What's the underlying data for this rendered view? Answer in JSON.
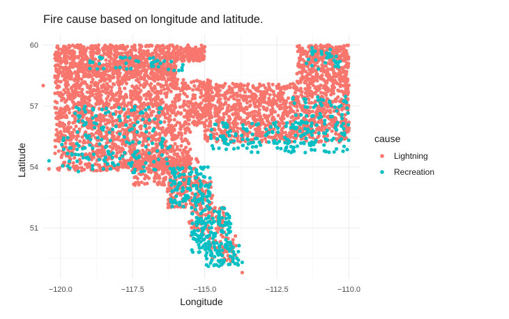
{
  "chart_data": {
    "type": "scatter",
    "title": "Fire cause based on longitude and latitude.",
    "xlabel": "Longitude",
    "ylabel": "Latitude",
    "xlim": [
      -120.6,
      -109.6
    ],
    "ylim": [
      48.5,
      60.5
    ],
    "x_ticks": [
      -120.0,
      -117.5,
      -115.0,
      -112.5,
      -110.0
    ],
    "x_tick_labels": [
      "−120.0",
      "−117.5",
      "−115.0",
      "−112.5",
      "−110.0"
    ],
    "y_ticks": [
      51,
      54,
      57,
      60
    ],
    "y_tick_labels": [
      "51",
      "54",
      "57",
      "60"
    ],
    "grid": true,
    "legend": {
      "title": "cause",
      "placement": "right"
    },
    "series": [
      {
        "name": "Lightning",
        "color": "#F8766D",
        "regions": [
          {
            "lon": [
              -120.2,
              -116.0
            ],
            "lat": [
              58.3,
              60.0
            ],
            "n": 900
          },
          {
            "lon": [
              -116.0,
              -115.0
            ],
            "lat": [
              59.2,
              60.0
            ],
            "n": 120
          },
          {
            "lon": [
              -120.2,
              -114.8
            ],
            "lat": [
              56.0,
              58.3
            ],
            "n": 900
          },
          {
            "lon": [
              -115.0,
              -110.0
            ],
            "lat": [
              55.2,
              58.1
            ],
            "n": 1100
          },
          {
            "lon": [
              -111.8,
              -110.0
            ],
            "lat": [
              58.1,
              60.0
            ],
            "n": 350
          },
          {
            "lon": [
              -120.2,
              -115.5
            ],
            "lat": [
              53.8,
              56.0
            ],
            "n": 700
          },
          {
            "lon": [
              -117.5,
              -115.2
            ],
            "lat": [
              53.1,
              54.5
            ],
            "n": 220
          },
          {
            "lon": [
              -116.3,
              -114.7
            ],
            "lat": [
              52.0,
              53.3
            ],
            "n": 140
          },
          {
            "lon": [
              -115.6,
              -114.3
            ],
            "lat": [
              50.6,
              52.0
            ],
            "n": 80
          },
          {
            "lon": [
              -115.0,
              -113.9
            ],
            "lat": [
              49.3,
              50.6
            ],
            "n": 50
          }
        ],
        "points": [
          {
            "lon": -113.7,
            "lat": 48.8
          },
          {
            "lon": -120.6,
            "lat": 58.0
          },
          {
            "lon": -120.4,
            "lat": 53.9
          }
        ]
      },
      {
        "name": "Recreation",
        "color": "#00BFC4",
        "regions": [
          {
            "lon": [
              -120.0,
              -116.0
            ],
            "lat": [
              53.7,
              55.5
            ],
            "n": 110
          },
          {
            "lon": [
              -119.5,
              -116.5
            ],
            "lat": [
              55.5,
              57.0
            ],
            "n": 70
          },
          {
            "lon": [
              -116.2,
              -114.8
            ],
            "lat": [
              52.0,
              54.0
            ],
            "n": 120
          },
          {
            "lon": [
              -115.5,
              -114.1
            ],
            "lat": [
              49.8,
              52.0
            ],
            "n": 140
          },
          {
            "lon": [
              -115.0,
              -113.8
            ],
            "lat": [
              49.0,
              50.3
            ],
            "n": 60
          },
          {
            "lon": [
              -114.8,
              -110.0
            ],
            "lat": [
              54.7,
              56.2
            ],
            "n": 180
          },
          {
            "lon": [
              -119.0,
              -115.5
            ],
            "lat": [
              58.7,
              59.4
            ],
            "n": 40
          },
          {
            "lon": [
              -112.0,
              -110.0
            ],
            "lat": [
              56.0,
              57.5
            ],
            "n": 50
          },
          {
            "lon": [
              -111.5,
              -110.3
            ],
            "lat": [
              58.8,
              59.9
            ],
            "n": 30
          }
        ],
        "points": [
          {
            "lon": -113.7,
            "lat": 49.3
          },
          {
            "lon": -120.4,
            "lat": 54.3
          }
        ]
      }
    ]
  }
}
